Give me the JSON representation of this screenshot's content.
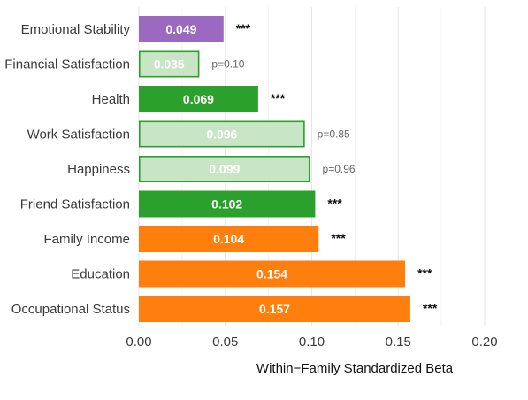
{
  "chart_data": {
    "type": "bar",
    "orientation": "horizontal",
    "title": "",
    "xlabel": "Within−Family Standardized Beta",
    "ylabel": "",
    "xlim": [
      0,
      0.2
    ],
    "x_ticks": [
      {
        "value": 0,
        "label": "0.00"
      },
      {
        "value": 0.05,
        "label": "0.05"
      },
      {
        "value": 0.1,
        "label": "0.10"
      },
      {
        "value": 0.15,
        "label": "0.15"
      },
      {
        "value": 0.2,
        "label": "0.20"
      }
    ],
    "grid": true,
    "legend": "none",
    "colors": {
      "purple": "#9b69c0",
      "green": "#2ca02c",
      "green_light": "#c8e6c5",
      "orange": "#ff7f0e"
    },
    "bars": [
      {
        "category": "Emotional Stability",
        "value": 0.049,
        "value_label": "0.049",
        "annotation": "***",
        "annotation_type": "sig",
        "color": "#9b69c0",
        "outline": null
      },
      {
        "category": "Financial Satisfaction",
        "value": 0.035,
        "value_label": "0.035",
        "annotation": "p=0.10",
        "annotation_type": "p",
        "color": "#c8e6c5",
        "outline": "#2ca02c"
      },
      {
        "category": "Health",
        "value": 0.069,
        "value_label": "0.069",
        "annotation": "***",
        "annotation_type": "sig",
        "color": "#2ca02c",
        "outline": null
      },
      {
        "category": "Work Satisfaction",
        "value": 0.096,
        "value_label": "0.096",
        "annotation": "p=0.85",
        "annotation_type": "p",
        "color": "#c8e6c5",
        "outline": "#2ca02c"
      },
      {
        "category": "Happiness",
        "value": 0.099,
        "value_label": "0.099",
        "annotation": "p=0.96",
        "annotation_type": "p",
        "color": "#c8e6c5",
        "outline": "#2ca02c"
      },
      {
        "category": "Friend Satisfaction",
        "value": 0.102,
        "value_label": "0.102",
        "annotation": "***",
        "annotation_type": "sig",
        "color": "#2ca02c",
        "outline": null
      },
      {
        "category": "Family Income",
        "value": 0.104,
        "value_label": "0.104",
        "annotation": "***",
        "annotation_type": "sig",
        "color": "#ff7f0e",
        "outline": null
      },
      {
        "category": "Education",
        "value": 0.154,
        "value_label": "0.154",
        "annotation": "***",
        "annotation_type": "sig",
        "color": "#ff7f0e",
        "outline": null
      },
      {
        "category": "Occupational Status",
        "value": 0.157,
        "value_label": "0.157",
        "annotation": "***",
        "annotation_type": "sig",
        "color": "#ff7f0e",
        "outline": null
      }
    ]
  }
}
